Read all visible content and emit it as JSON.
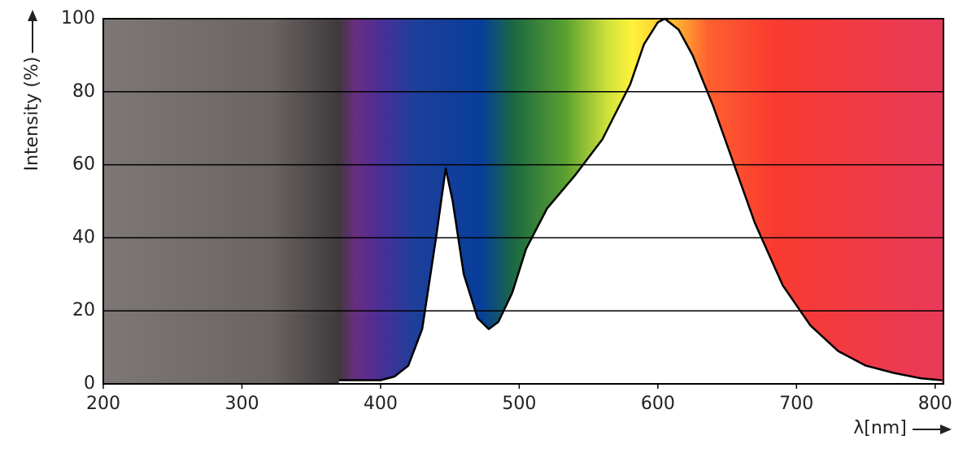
{
  "chart_data": {
    "type": "area",
    "y_label": "Intensity (%)",
    "x_label": "λ[nm]",
    "x": [
      370,
      380,
      400,
      410,
      420,
      430,
      440,
      447,
      452,
      460,
      470,
      478,
      485,
      495,
      505,
      520,
      540,
      560,
      580,
      590,
      600,
      605,
      615,
      625,
      640,
      655,
      670,
      690,
      710,
      730,
      750,
      770,
      790,
      805
    ],
    "values": [
      1,
      1,
      1,
      2,
      5,
      15,
      40,
      59,
      50,
      30,
      18,
      15,
      17,
      25,
      37,
      48,
      57,
      67,
      82,
      93,
      99,
      100,
      97,
      90,
      76,
      60,
      44,
      27,
      16,
      9,
      5,
      3,
      1.5,
      1
    ],
    "fill": "#ffffff",
    "color": "#000000",
    "xlim": [
      200,
      806
    ],
    "xticks": [
      200,
      300,
      400,
      500,
      600,
      700,
      800
    ],
    "ylim": [
      0,
      100
    ],
    "yticks": [
      0,
      20,
      40,
      60,
      80,
      100
    ],
    "grid": true
  }
}
